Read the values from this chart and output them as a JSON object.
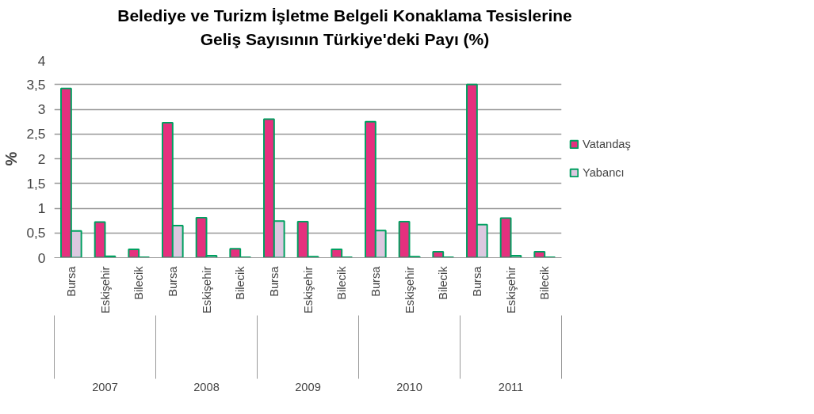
{
  "chart_data": {
    "type": "bar",
    "title": "Belediye ve Turizm İşletme Belgeli Konaklama Tesislerine\nGeliş Sayısının Türkiye'deki Payı (%)",
    "ylabel": "%",
    "categories": [
      "Bursa",
      "Eskişehir",
      "Bilecik",
      "Bursa",
      "Eskişehir",
      "Bilecik",
      "Bursa",
      "Eskişehir",
      "Bilecik",
      "Bursa",
      "Eskişehir",
      "Bilecik",
      "Bursa",
      "Eskişehir",
      "Bilecik"
    ],
    "annotations": [
      "2007",
      "2008",
      "2009",
      "2010",
      "2011"
    ],
    "series": [
      {
        "name": "Vatandaş",
        "color": "#e5307e",
        "values": [
          3.42,
          0.72,
          0.17,
          2.73,
          0.81,
          0.18,
          2.8,
          0.73,
          0.17,
          2.75,
          0.73,
          0.12,
          3.5,
          0.8,
          0.12
        ]
      },
      {
        "name": "Yabancı",
        "color": "#dcc8e0",
        "values": [
          0.54,
          0.03,
          0.01,
          0.65,
          0.04,
          0.01,
          0.74,
          0.02,
          0.01,
          0.55,
          0.02,
          0.01,
          0.67,
          0.04,
          0.01
        ]
      }
    ],
    "ylim": [
      0,
      4
    ],
    "yticks": [
      {
        "value": 0,
        "label": "0"
      },
      {
        "value": 0.5,
        "label": "0,5"
      },
      {
        "value": 1,
        "label": "1"
      },
      {
        "value": 1.5,
        "label": "1,5"
      },
      {
        "value": 2,
        "label": "2"
      },
      {
        "value": 2.5,
        "label": "2,5"
      },
      {
        "value": 3,
        "label": "3"
      },
      {
        "value": 3.5,
        "label": "3,5"
      },
      {
        "value": 4,
        "label": "4"
      }
    ],
    "grid": "y",
    "legend": "right"
  }
}
